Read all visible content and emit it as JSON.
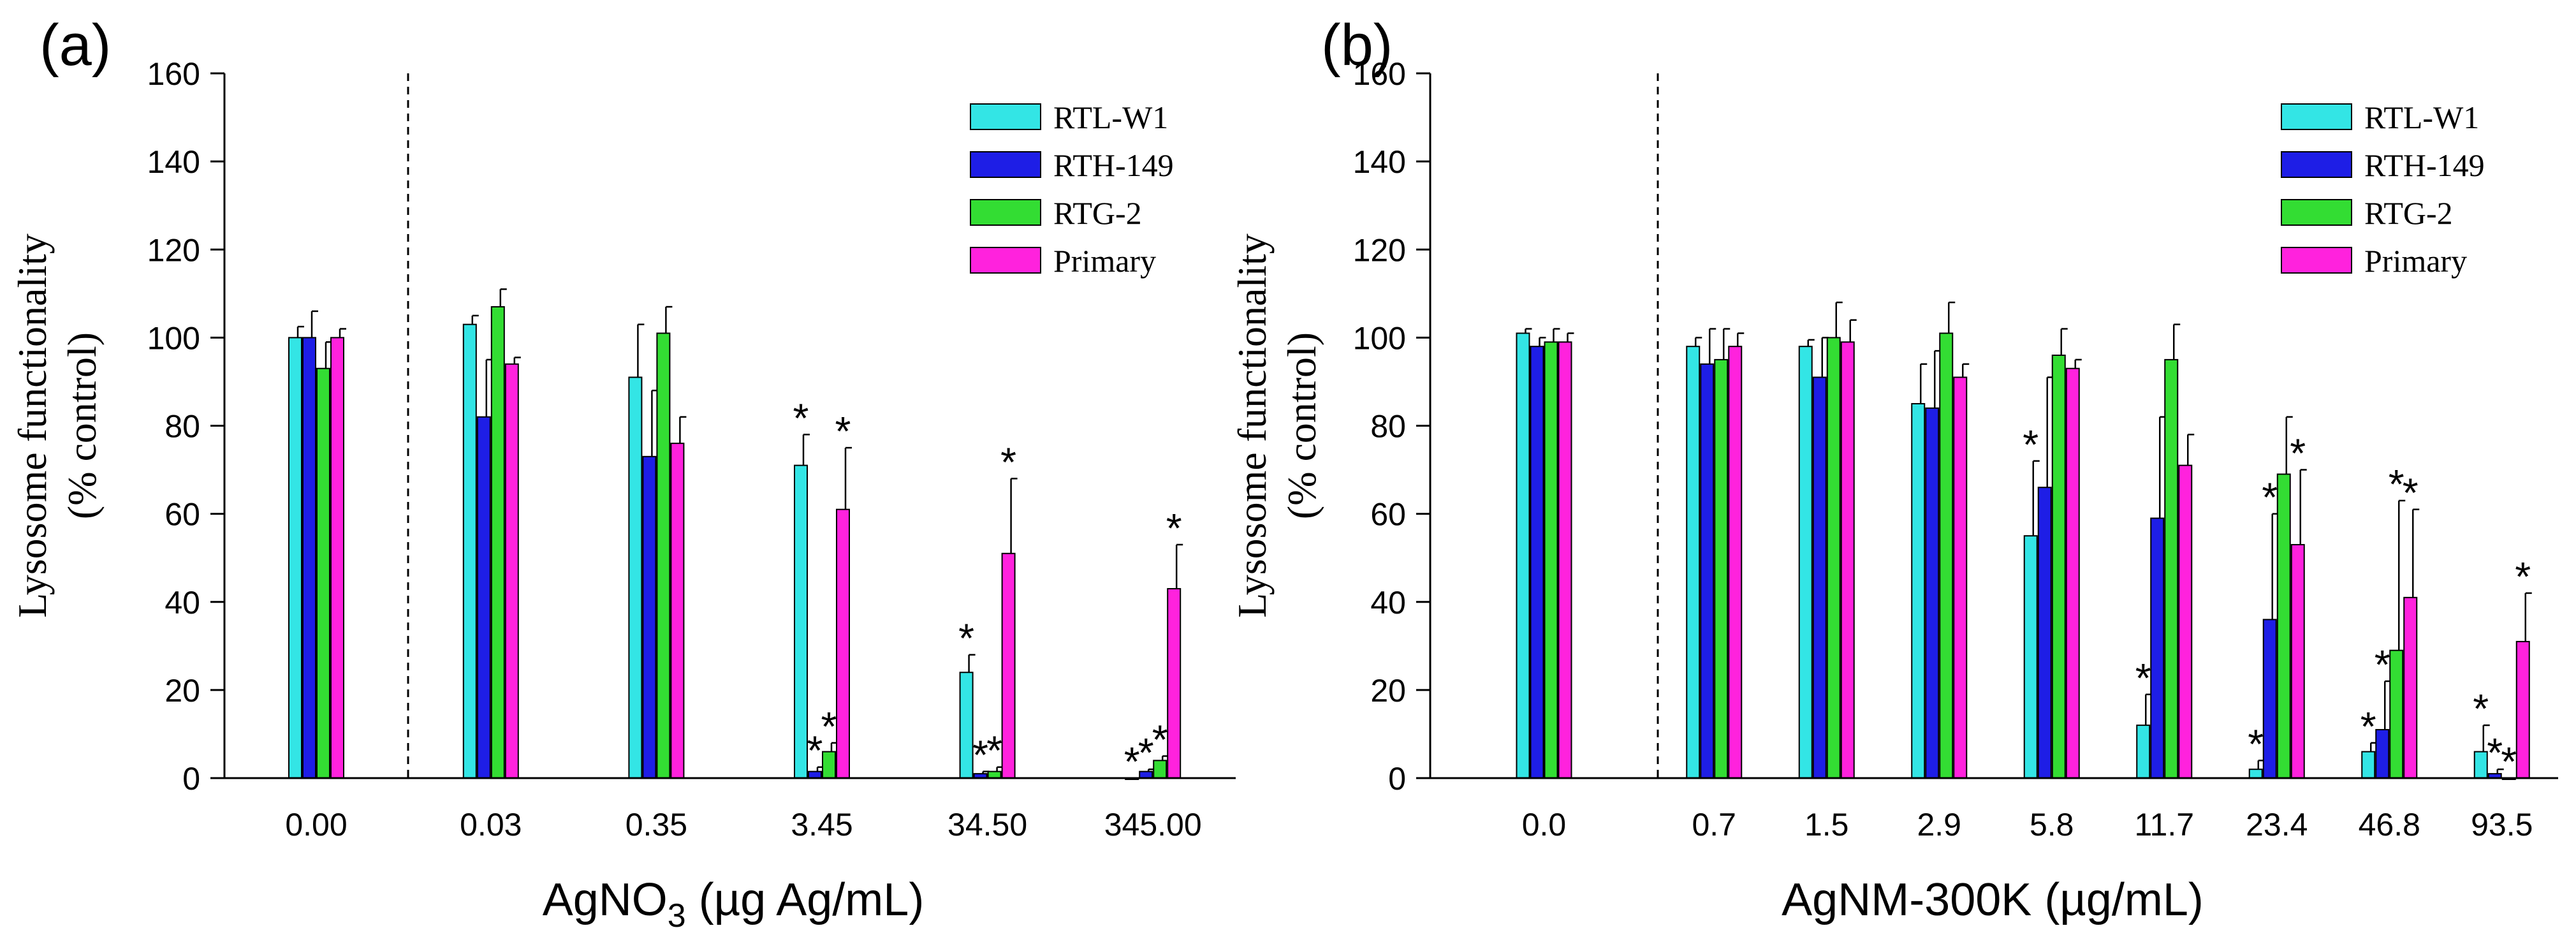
{
  "chart_data": [
    {
      "type": "bar",
      "panel_label": "(a)",
      "xlabel_main": "AgNO",
      "xlabel_sub": "3",
      "xlabel_rest": " (µg Ag/mL)",
      "ylabel_line1": "Lysosome functionality",
      "ylabel_line2": "(% control)",
      "ylim": [
        0,
        160
      ],
      "yticks": [
        0,
        20,
        40,
        60,
        80,
        100,
        120,
        140,
        160
      ],
      "categories": [
        "0.00",
        "0.03",
        "0.35",
        "3.45",
        "34.50",
        "345.00"
      ],
      "control_separator": "dashed line after first category",
      "series": [
        {
          "name": "RTL-W1",
          "color": "#33e5e5",
          "values": [
            100,
            103,
            91,
            71,
            24,
            0
          ],
          "errors": [
            2.5,
            2,
            12,
            7,
            4,
            0
          ],
          "significant": [
            false,
            false,
            false,
            true,
            true,
            true
          ]
        },
        {
          "name": "RTH-149",
          "color": "#1e1ee6",
          "values": [
            100,
            82,
            73,
            1.5,
            1,
            1.5
          ],
          "errors": [
            6,
            13,
            15,
            1,
            0.5,
            0.5
          ],
          "significant": [
            false,
            false,
            false,
            true,
            true,
            true
          ]
        },
        {
          "name": "RTG-2",
          "color": "#33dd33",
          "values": [
            93,
            107,
            101,
            6,
            1.5,
            4
          ],
          "errors": [
            6,
            4,
            6,
            2,
            1,
            1
          ],
          "significant": [
            false,
            false,
            false,
            true,
            true,
            true
          ]
        },
        {
          "name": "Primary",
          "color": "#ff22dd",
          "values": [
            100,
            94,
            76,
            61,
            51,
            43
          ],
          "errors": [
            2,
            1.5,
            6,
            14,
            17,
            10
          ],
          "significant": [
            false,
            false,
            false,
            true,
            true,
            true
          ]
        }
      ],
      "legend": [
        "RTL-W1",
        "RTH-149",
        "RTG-2",
        "Primary"
      ],
      "legend_position": "top-right",
      "significance_marker": "*"
    },
    {
      "type": "bar",
      "panel_label": "(b)",
      "xlabel_main": "AgNM-300K (µg/mL)",
      "xlabel_sub": "",
      "xlabel_rest": "",
      "ylabel_line1": "Lysosome functionality",
      "ylabel_line2": "(% control)",
      "ylim": [
        0,
        160
      ],
      "yticks": [
        0,
        20,
        40,
        60,
        80,
        100,
        120,
        140,
        160
      ],
      "categories": [
        "0.0",
        "0.7",
        "1.5",
        "2.9",
        "5.8",
        "11.7",
        "23.4",
        "46.8",
        "93.5"
      ],
      "control_separator": "dashed line after first category",
      "series": [
        {
          "name": "RTL-W1",
          "color": "#33e5e5",
          "values": [
            101,
            98,
            98,
            85,
            55,
            12,
            2,
            6,
            6
          ],
          "errors": [
            1,
            2,
            1.5,
            9,
            17,
            7,
            2,
            2,
            6
          ],
          "significant": [
            false,
            false,
            false,
            false,
            true,
            true,
            true,
            true,
            true
          ]
        },
        {
          "name": "RTH-149",
          "color": "#1e1ee6",
          "values": [
            98,
            94,
            91,
            84,
            66,
            59,
            36,
            11,
            1
          ],
          "errors": [
            2,
            8,
            9,
            13,
            25,
            23,
            24,
            11,
            1
          ],
          "significant": [
            false,
            false,
            false,
            false,
            false,
            false,
            true,
            true,
            true
          ]
        },
        {
          "name": "RTG-2",
          "color": "#33dd33",
          "values": [
            99,
            95,
            100,
            101,
            96,
            95,
            69,
            29,
            0
          ],
          "errors": [
            3,
            7,
            8,
            7,
            6,
            8,
            13,
            34,
            0
          ],
          "significant": [
            false,
            false,
            false,
            false,
            false,
            false,
            false,
            true,
            true
          ]
        },
        {
          "name": "Primary",
          "color": "#ff22dd",
          "values": [
            99,
            98,
            99,
            91,
            93,
            71,
            53,
            41,
            31
          ],
          "errors": [
            2,
            3,
            5,
            3,
            2,
            7,
            17,
            20,
            11
          ],
          "significant": [
            false,
            false,
            false,
            false,
            false,
            false,
            true,
            true,
            true
          ]
        }
      ],
      "legend": [
        "RTL-W1",
        "RTH-149",
        "RTG-2",
        "Primary"
      ],
      "legend_position": "top-right",
      "significance_marker": "*"
    }
  ]
}
